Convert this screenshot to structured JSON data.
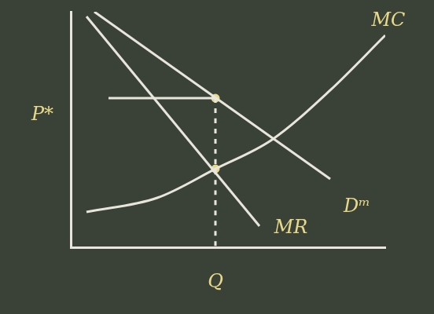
{
  "chart_data": {
    "type": "line",
    "xlim": [
      0,
      10
    ],
    "ylim": [
      0,
      10
    ],
    "grid": false,
    "tick_labels": false,
    "series": [
      {
        "name": "Dᵐ",
        "color": "#e8e6dc",
        "line_style": "solid",
        "x": [
          0.75,
          8.25
        ],
        "values": [
          10,
          2.9
        ]
      },
      {
        "name": "MR",
        "color": "#e8e6dc",
        "line_style": "solid",
        "x": [
          0.5,
          6
        ],
        "values": [
          9.8,
          0.9
        ]
      },
      {
        "name": "MC",
        "color": "#e8e6dc",
        "line_style": "solid",
        "x": [
          0.5,
          2.75,
          4.6,
          6.4,
          8.25,
          10
        ],
        "values": [
          1.5,
          2.1,
          3.33,
          4.57,
          6.67,
          9
        ]
      },
      {
        "color": "#e8e6dc",
        "line_style": "solid",
        "x": [
          1.2,
          4.6
        ],
        "values": [
          6.33,
          6.33
        ]
      },
      {
        "color": "#e8e6dc",
        "line_style": "dashed",
        "x": [
          4.6,
          4.6
        ],
        "values": [
          6.33,
          0
        ]
      },
      {
        "type": "scatter",
        "marker": "circle",
        "color": "#e8d98a",
        "x": [
          4.6,
          4.6
        ],
        "values": [
          6.33,
          3.33
        ]
      }
    ],
    "annotations": [
      {
        "text": "MC",
        "x": 10.1,
        "y": 9.6
      },
      {
        "text": "MR",
        "x": 7.0,
        "y": 0.8
      },
      {
        "text": "Dᵐ",
        "x": 9.1,
        "y": 1.7
      },
      {
        "text": "P*",
        "x": -0.9,
        "y": 5.6
      },
      {
        "text": "Q",
        "x": 4.6,
        "y": -1.5
      }
    ]
  }
}
